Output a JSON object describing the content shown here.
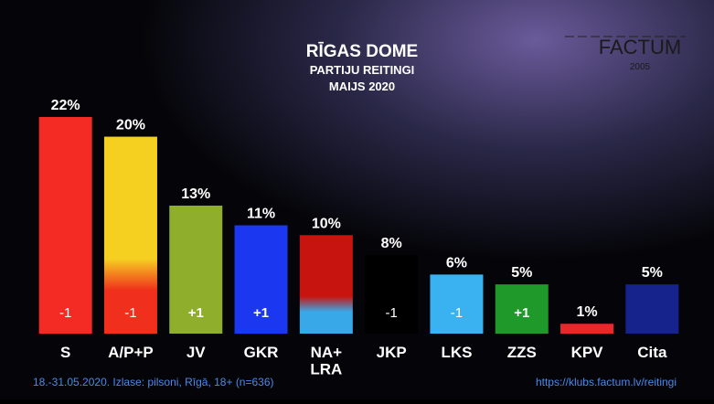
{
  "chart_data": {
    "type": "bar",
    "title": "RĪGAS DOME",
    "subtitle": "PARTIJU REITINGI",
    "period": "MAIJS 2020",
    "logo": "FACTUM",
    "logo_year": "2005",
    "categories": [
      "S",
      "A/P+P",
      "JV",
      "GKR",
      "NA+\nLRA",
      "JKP",
      "LKS",
      "ZZS",
      "KPV",
      "Cita"
    ],
    "values": [
      22,
      20,
      13,
      11,
      10,
      8,
      6,
      5,
      1,
      5
    ],
    "value_labels": [
      "22%",
      "20%",
      "13%",
      "11%",
      "10%",
      "8%",
      "6%",
      "5%",
      "1%",
      "5%"
    ],
    "changes": [
      -1,
      -1,
      {
        "value": 1,
        "label": "+1"
      },
      {
        "value": 1,
        "label": "+1"
      },
      null,
      -1,
      -1,
      {
        "value": 1,
        "label": "+1"
      },
      null,
      null
    ],
    "colors": [
      "#f42a24",
      "#f6d021",
      "#8fae2c",
      "#1c37f0",
      "#c8140f",
      "#000000",
      "#3ab2f2",
      "#1f9a2a",
      "#e8282a",
      "#17238c"
    ],
    "bottom_colors": [
      null,
      "#f0301c",
      null,
      null,
      "#39a8e8",
      null,
      null,
      null,
      null,
      null
    ],
    "ylim": [
      0,
      22
    ],
    "footnote": "18.-31.05.2020. Izlase: pilsoni, Rīgā, 18+ (n=636)",
    "source": "https://klubs.factum.lv/reitingi"
  }
}
